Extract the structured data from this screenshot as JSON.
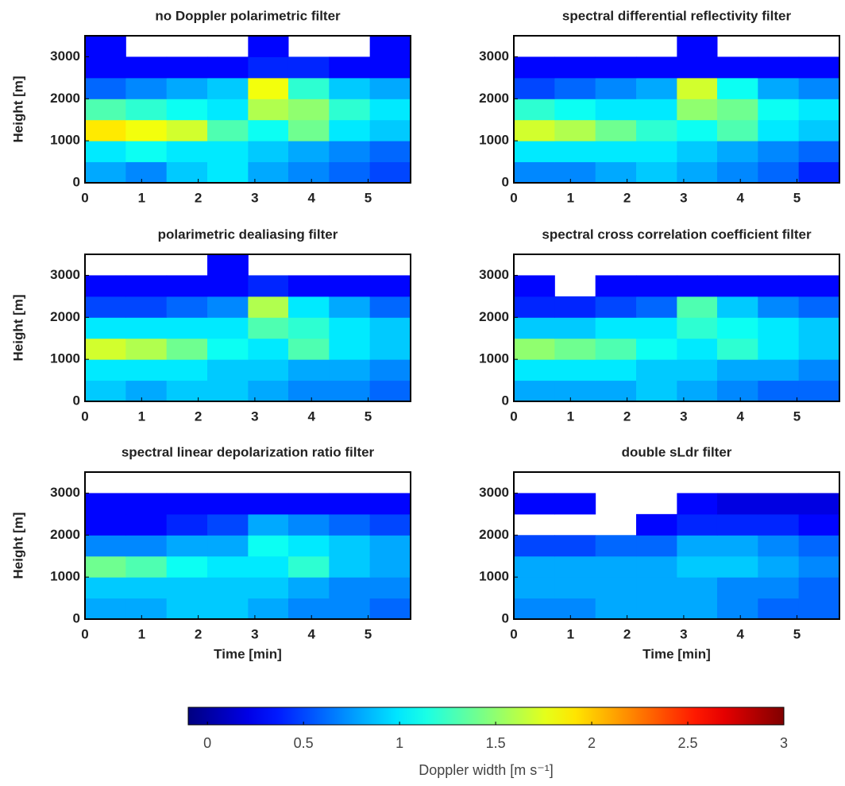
{
  "chart_data": [
    {
      "type": "heatmap",
      "title": "no Doppler polarimetric filter",
      "ylabel": "Height [m]",
      "xlim": [
        0,
        5.75
      ],
      "ylim": [
        0,
        3500
      ],
      "xticks": [
        0,
        1,
        2,
        3,
        4,
        5
      ],
      "yticks": [
        0,
        1000,
        2000,
        3000
      ],
      "xbins": [
        0,
        0.72,
        1.44,
        2.16,
        2.88,
        3.59,
        4.31,
        5.03,
        5.75
      ],
      "ybins": [
        0,
        500,
        1000,
        1500,
        2000,
        2500,
        3000,
        3500
      ],
      "z": [
        [
          0.8,
          0.7,
          0.9,
          1.0,
          0.8,
          0.7,
          0.6,
          0.5
        ],
        [
          1.0,
          1.1,
          1.0,
          1.0,
          0.9,
          0.8,
          0.7,
          0.6
        ],
        [
          1.9,
          1.8,
          1.7,
          1.3,
          1.1,
          1.4,
          1.0,
          0.9
        ],
        [
          1.3,
          1.2,
          1.1,
          1.0,
          1.6,
          1.5,
          1.2,
          1.0
        ],
        [
          0.6,
          0.7,
          0.8,
          0.9,
          1.8,
          1.2,
          0.9,
          0.8
        ],
        [
          0.3,
          0.3,
          0.3,
          0.3,
          0.4,
          0.4,
          0.3,
          0.3
        ],
        [
          0.3,
          null,
          null,
          null,
          0.3,
          null,
          null,
          0.3
        ]
      ]
    },
    {
      "type": "heatmap",
      "title": "spectral differential reflectivity filter",
      "xlim": [
        0,
        5.75
      ],
      "ylim": [
        0,
        3500
      ],
      "xticks": [
        0,
        1,
        2,
        3,
        4,
        5
      ],
      "yticks": [
        0,
        1000,
        2000,
        3000
      ],
      "xbins": [
        0,
        0.72,
        1.44,
        2.16,
        2.88,
        3.59,
        4.31,
        5.03,
        5.75
      ],
      "ybins": [
        0,
        500,
        1000,
        1500,
        2000,
        2500,
        3000,
        3500
      ],
      "z": [
        [
          0.7,
          0.7,
          0.8,
          0.9,
          0.8,
          0.7,
          0.6,
          0.4
        ],
        [
          1.0,
          1.0,
          1.0,
          1.0,
          0.9,
          0.8,
          0.7,
          0.6
        ],
        [
          1.7,
          1.6,
          1.4,
          1.2,
          1.1,
          1.3,
          1.0,
          0.9
        ],
        [
          1.2,
          1.1,
          1.0,
          1.0,
          1.5,
          1.4,
          1.1,
          1.0
        ],
        [
          0.5,
          0.6,
          0.7,
          0.8,
          1.7,
          1.1,
          0.8,
          0.7
        ],
        [
          0.3,
          0.3,
          0.3,
          0.3,
          0.3,
          0.3,
          0.3,
          0.3
        ],
        [
          null,
          null,
          null,
          null,
          0.3,
          null,
          null,
          null
        ]
      ]
    },
    {
      "type": "heatmap",
      "title": "polarimetric dealiasing filter",
      "ylabel": "Height [m]",
      "xlim": [
        0,
        5.75
      ],
      "ylim": [
        0,
        3500
      ],
      "xticks": [
        0,
        1,
        2,
        3,
        4,
        5
      ],
      "yticks": [
        0,
        1000,
        2000,
        3000
      ],
      "xbins": [
        0,
        0.72,
        1.44,
        2.16,
        2.88,
        3.59,
        4.31,
        5.03,
        5.75
      ],
      "ybins": [
        0,
        500,
        1000,
        1500,
        2000,
        2500,
        3000,
        3500
      ],
      "z": [
        [
          0.9,
          0.8,
          0.9,
          0.9,
          0.8,
          0.7,
          0.7,
          0.6
        ],
        [
          1.0,
          1.0,
          1.0,
          0.9,
          0.9,
          0.8,
          0.8,
          0.7
        ],
        [
          1.7,
          1.6,
          1.4,
          1.1,
          1.0,
          1.3,
          1.0,
          0.9
        ],
        [
          1.0,
          1.0,
          1.0,
          1.0,
          1.3,
          1.2,
          1.0,
          0.9
        ],
        [
          0.5,
          0.5,
          0.6,
          0.7,
          1.6,
          1.0,
          0.8,
          0.6
        ],
        [
          0.3,
          0.3,
          0.3,
          0.3,
          0.4,
          0.3,
          0.3,
          0.3
        ],
        [
          null,
          null,
          null,
          0.3,
          null,
          null,
          null,
          null
        ]
      ]
    },
    {
      "type": "heatmap",
      "title": "spectral cross correlation coefficient filter",
      "xlim": [
        0,
        5.75
      ],
      "ylim": [
        0,
        3500
      ],
      "xticks": [
        0,
        1,
        2,
        3,
        4,
        5
      ],
      "yticks": [
        0,
        1000,
        2000,
        3000
      ],
      "xbins": [
        0,
        0.72,
        1.44,
        2.16,
        2.88,
        3.59,
        4.31,
        5.03,
        5.75
      ],
      "ybins": [
        0,
        500,
        1000,
        1500,
        2000,
        2500,
        3000,
        3500
      ],
      "z": [
        [
          0.8,
          0.8,
          0.8,
          0.9,
          0.8,
          0.7,
          0.6,
          0.6
        ],
        [
          1.0,
          1.0,
          1.0,
          0.9,
          0.9,
          0.8,
          0.8,
          0.7
        ],
        [
          1.5,
          1.4,
          1.3,
          1.1,
          1.0,
          1.2,
          1.0,
          0.9
        ],
        [
          0.9,
          0.9,
          1.0,
          1.0,
          1.2,
          1.1,
          1.0,
          0.9
        ],
        [
          0.4,
          0.4,
          0.5,
          0.6,
          1.3,
          0.9,
          0.7,
          0.6
        ],
        [
          0.3,
          null,
          0.3,
          0.3,
          0.3,
          0.3,
          0.3,
          0.3
        ],
        [
          null,
          null,
          null,
          null,
          null,
          null,
          null,
          null
        ]
      ]
    },
    {
      "type": "heatmap",
      "title": "spectral linear depolarization ratio filter",
      "ylabel": "Height [m]",
      "xlabel": "Time [min]",
      "xlim": [
        0,
        5.75
      ],
      "ylim": [
        0,
        3500
      ],
      "xticks": [
        0,
        1,
        2,
        3,
        4,
        5
      ],
      "yticks": [
        0,
        1000,
        2000,
        3000
      ],
      "xbins": [
        0,
        0.72,
        1.44,
        2.16,
        2.88,
        3.59,
        4.31,
        5.03,
        5.75
      ],
      "ybins": [
        0,
        500,
        1000,
        1500,
        2000,
        2500,
        3000,
        3500
      ],
      "z": [
        [
          0.8,
          0.8,
          0.9,
          0.9,
          0.8,
          0.7,
          0.7,
          0.6
        ],
        [
          0.9,
          0.9,
          0.9,
          0.9,
          0.9,
          0.8,
          0.7,
          0.7
        ],
        [
          1.4,
          1.3,
          1.1,
          1.0,
          1.0,
          1.2,
          0.9,
          0.8
        ],
        [
          0.7,
          0.7,
          0.8,
          0.8,
          1.1,
          1.0,
          0.9,
          0.8
        ],
        [
          0.3,
          0.3,
          0.4,
          0.5,
          0.8,
          0.7,
          0.6,
          0.5
        ],
        [
          0.3,
          0.3,
          0.3,
          0.3,
          0.3,
          0.3,
          0.3,
          0.3
        ],
        [
          null,
          null,
          null,
          null,
          null,
          null,
          null,
          null
        ]
      ]
    },
    {
      "type": "heatmap",
      "title": "double sLdr filter",
      "xlabel": "Time [min]",
      "xlim": [
        0,
        5.75
      ],
      "ylim": [
        0,
        3500
      ],
      "xticks": [
        0,
        1,
        2,
        3,
        4,
        5
      ],
      "yticks": [
        0,
        1000,
        2000,
        3000
      ],
      "xbins": [
        0,
        0.72,
        1.44,
        2.16,
        2.88,
        3.59,
        4.31,
        5.03,
        5.75
      ],
      "ybins": [
        0,
        500,
        1000,
        1500,
        2000,
        2500,
        3000,
        3500
      ],
      "z": [
        [
          0.7,
          0.7,
          0.8,
          0.8,
          0.8,
          0.7,
          0.6,
          0.6
        ],
        [
          0.8,
          0.8,
          0.8,
          0.8,
          0.8,
          0.7,
          0.7,
          0.6
        ],
        [
          0.8,
          0.8,
          0.8,
          0.8,
          0.9,
          0.9,
          0.8,
          0.7
        ],
        [
          0.5,
          0.5,
          0.6,
          0.6,
          0.8,
          0.8,
          0.7,
          0.6
        ],
        [
          null,
          null,
          null,
          0.3,
          0.4,
          0.4,
          0.4,
          0.3
        ],
        [
          0.3,
          0.3,
          null,
          null,
          0.3,
          0.2,
          0.2,
          0.2
        ],
        [
          null,
          null,
          null,
          null,
          null,
          null,
          null,
          null
        ]
      ]
    },
    {
      "type": "colorbar",
      "label": "Doppler width [m s⁻¹]",
      "colormap": "jet",
      "clim": [
        -0.1,
        3
      ],
      "ticks": [
        0,
        0.5,
        1,
        1.5,
        2,
        2.5,
        3
      ]
    }
  ]
}
